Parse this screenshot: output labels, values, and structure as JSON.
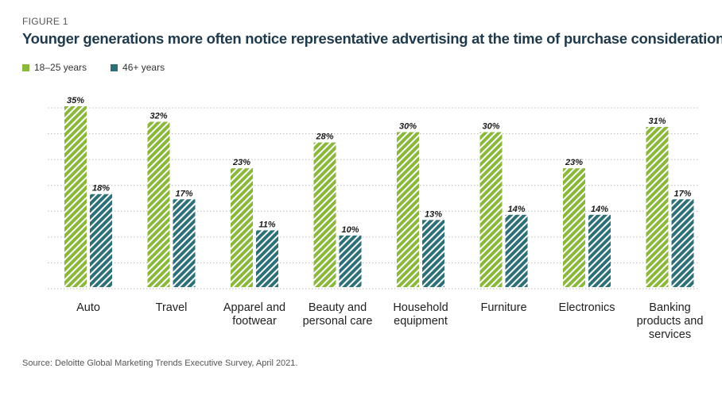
{
  "figure_label": "FIGURE 1",
  "title": "Younger generations more often notice representative advertising at the time of purchase consideration",
  "source": "Source: Deloitte Global Marketing Trends Executive Survey, April 2021.",
  "colors": {
    "series_young": "#8ab83a",
    "series_old": "#2e7078",
    "title": "#1f3a4d",
    "grid": "#bbbbbb"
  },
  "chart_data": {
    "type": "bar",
    "title": "Younger generations more often notice representative advertising at the time of purchase consideration",
    "xlabel": "",
    "ylabel": "",
    "ylim": [
      0,
      35
    ],
    "grid": true,
    "legend_position": "top-left",
    "categories": [
      [
        "Auto"
      ],
      [
        "Travel"
      ],
      [
        "Apparel and",
        "footwear"
      ],
      [
        "Beauty and",
        "personal care"
      ],
      [
        "Household",
        "equipment"
      ],
      [
        "Furniture"
      ],
      [
        "Electronics"
      ],
      [
        "Banking",
        "products and",
        "services"
      ]
    ],
    "series": [
      {
        "name": "18–25 years",
        "values": [
          35,
          32,
          23,
          28,
          30,
          30,
          23,
          31
        ]
      },
      {
        "name": "46+ years",
        "values": [
          18,
          17,
          11,
          10,
          13,
          14,
          14,
          17
        ]
      }
    ]
  }
}
